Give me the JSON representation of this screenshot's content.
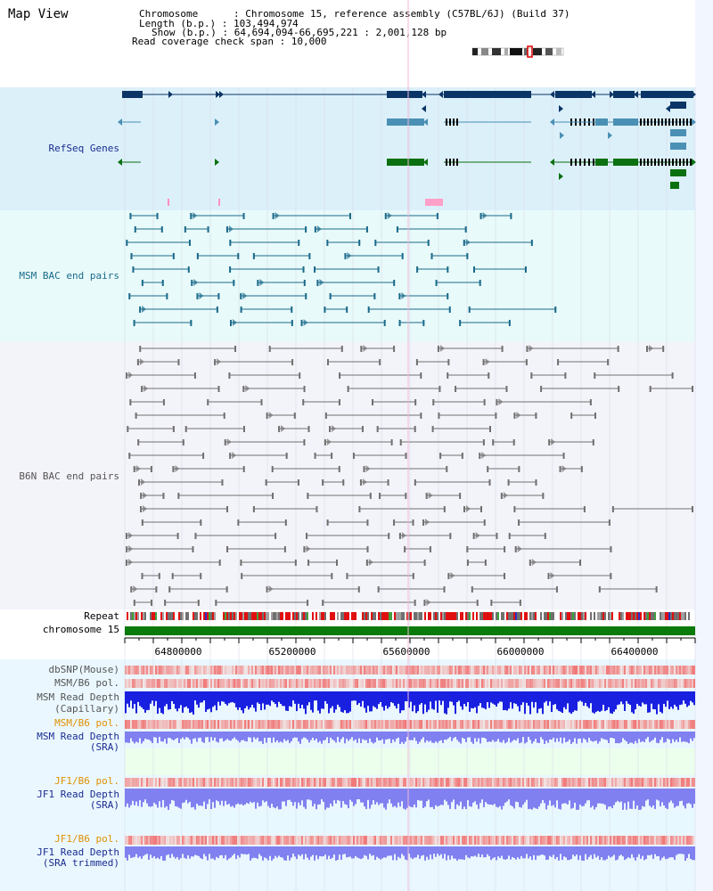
{
  "title": "Map View",
  "header": {
    "lines": [
      "Chromosome      : Chromosome 15, reference assembly (C57BL/6J) (Build 37)",
      "Length (b.p.) : 103,494,974",
      "Show (b.p.) : 64,694,094-66,695,221 : 2,001,128 bp",
      "Read coverage check span : 10,000"
    ]
  },
  "tracks": {
    "refseq": "RefSeq Genes",
    "msm_bac": "MSM BAC end pairs",
    "b6n_bac": "B6N BAC end pairs",
    "repeat": "Repeat",
    "chromosome": "chromosome 15",
    "dbsnp": "dbSNP(Mouse)",
    "msm_b6_pol": "MSM/B6 pol.",
    "msm_depth_cap_1": "MSM Read Depth",
    "msm_depth_cap_2": "(Capillary)",
    "msm_b6_pol_sra": "MSM/B6 pol.",
    "msm_depth_sra_1": "MSM Read Depth",
    "msm_depth_sra_2": "(SRA)",
    "jf1_b6_pol": "JF1/B6 pol.",
    "jf1_depth_sra_1": "JF1 Read Depth",
    "jf1_depth_sra_2": "(SRA)",
    "jf1_b6_pol_2": "JF1/B6 pol.",
    "jf1_depth_trim_1": "JF1 Read Depth",
    "jf1_depth_trim_2": "(SRA trimmed)"
  },
  "axis": {
    "ticks": [
      "64800000",
      "65200000",
      "65600000",
      "66000000",
      "66400000"
    ]
  },
  "colors": {
    "refseq_bg": "#dcf0fa",
    "msm_bg": "#e8fafa",
    "b6n_bg": "#f3f3fa",
    "gene_navy": "#0b3566",
    "gene_blue": "#4a90b4",
    "gene_green": "#0a7010",
    "msm_teal": "#1b6a8a",
    "b6n_gray": "#707070",
    "chrom_green": "#0a7a0a",
    "depth_blue": "#1a20e0",
    "depth_light": "#8080f0",
    "label_navy": "#1a2c90",
    "label_teal": "#1b6a8a",
    "label_gray": "#555555",
    "label_orange": "#e09000"
  }
}
